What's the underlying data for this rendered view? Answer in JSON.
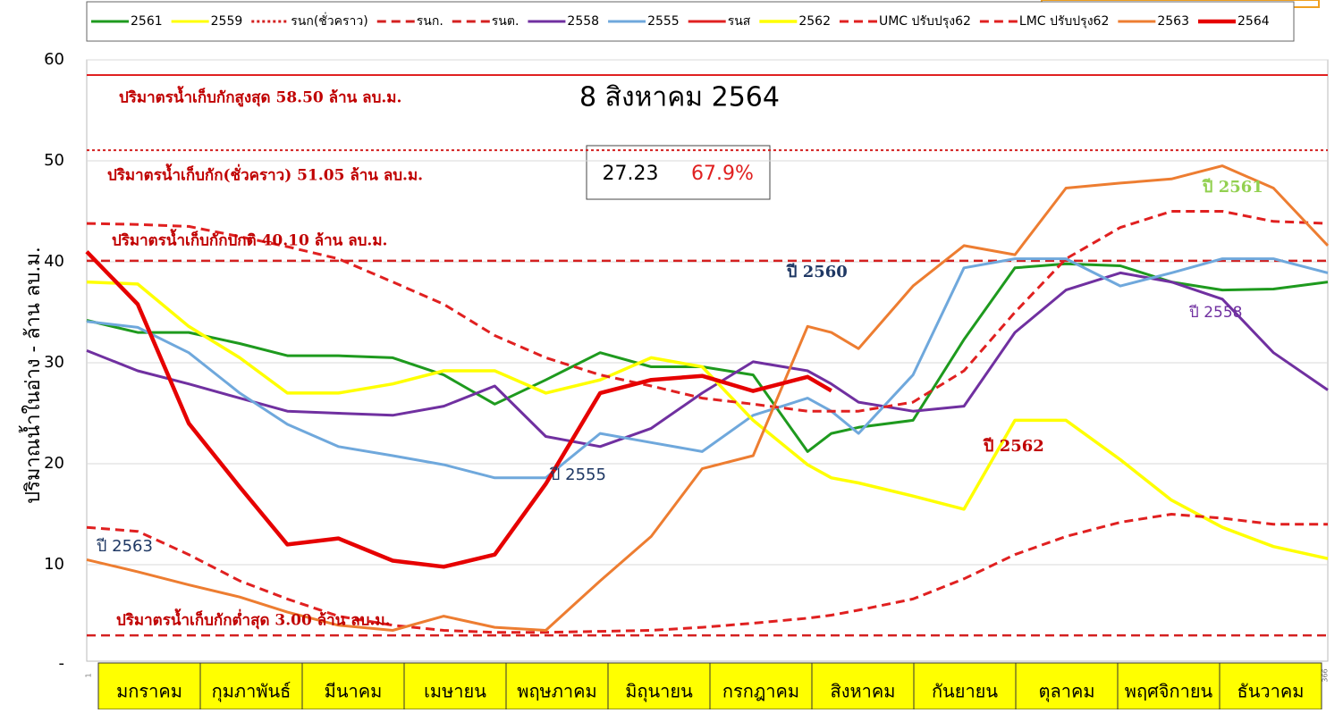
{
  "chart_data": {
    "type": "line",
    "title": "8 สิงหาคม 2564",
    "y_label": "ปริมาณน้ำในอ่าง - ล้าน ลบ.ม.",
    "current_volume": 27.23,
    "current_percent": {
      "value": 67.9,
      "label": "67.9%"
    },
    "categories": [
      "มกราคม",
      "กุมภาพันธ์",
      "มีนาคม",
      "เมษายน",
      "พฤษภาคม",
      "มิถุนายน",
      "กรกฎาคม",
      "สิงหาคม",
      "กันยายน",
      "ตุลาคม",
      "พฤศจิกายน",
      "ธันวาคม"
    ],
    "xlim": [
      1,
      366
    ],
    "xticks": [
      1,
      366
    ],
    "ylim": [
      0,
      60
    ],
    "yticks": [
      {
        "value": 0,
        "label": "-"
      },
      10,
      20,
      30,
      40,
      50,
      60
    ],
    "grid": true,
    "x": [
      1,
      16,
      31,
      46,
      60,
      75,
      91,
      106,
      121,
      136,
      152,
      167,
      182,
      197,
      213,
      220,
      228,
      244,
      259,
      274,
      289,
      305,
      320,
      335,
      350,
      366
    ],
    "annotations": [
      "ปริมาตรน้ำเก็บกักสูงสุด 58.50 ล้าน ลบ.ม.",
      "ปริมาตรน้ำเก็บกัก(ชั่วคราว) 51.05 ล้าน ลบ.ม.",
      "ปริมาตรน้ำเก็บกักปกติ 40.10 ล้าน ลบ.ม.",
      "ปริมาตรน้ำเก็บกักต่ำสุด 3.00 ล้าน ลบ.ม.",
      "ปี 2560",
      "ปี 2561",
      "ปี 2558",
      "ปี 2562",
      "ปี 2555",
      "ปี 2563"
    ],
    "series": [
      {
        "name": "2561",
        "color": "#1e9a1e",
        "dash": "solid",
        "width": 3,
        "values": [
          34.2,
          33,
          33,
          31.9,
          30.7,
          30.7,
          30.5,
          28.8,
          25.9,
          28.3,
          31,
          29.6,
          29.6,
          28.8,
          21.2,
          23,
          23.6,
          24.3,
          32.3,
          39.4,
          39.8,
          39.6,
          38,
          37.2,
          37.3,
          38
        ]
      },
      {
        "name": "2559",
        "color": "#ffff00",
        "dash": "solid",
        "width": 3
      },
      {
        "name": "รนก(ชั่วคราว)",
        "color": "#d42020",
        "dash": "dotted",
        "width": 2,
        "value": 51.05
      },
      {
        "name": "รนก.",
        "color": "#d42020",
        "dash": "dashed",
        "width": 2.5,
        "value": 40.1
      },
      {
        "name": "รนต.",
        "color": "#d42020",
        "dash": "dashed",
        "width": 2.5,
        "value": 3
      },
      {
        "name": "2558",
        "color": "#7030a0",
        "dash": "solid",
        "width": 3,
        "values": [
          31.2,
          29.2,
          27.9,
          26.5,
          25.2,
          25,
          24.8,
          25.7,
          27.7,
          22.7,
          21.7,
          23.5,
          27,
          30.1,
          29.2,
          27.9,
          26.1,
          25.2,
          25.7,
          33,
          37.2,
          38.9,
          38,
          36.3,
          31,
          27.3
        ]
      },
      {
        "name": "2555",
        "color": "#6fa8dc",
        "dash": "solid",
        "width": 3,
        "values": [
          34.1,
          33.5,
          31,
          27,
          23.9,
          21.7,
          20.8,
          19.9,
          18.6,
          18.6,
          23,
          22.1,
          21.2,
          24.8,
          26.5,
          25.2,
          23,
          28.8,
          39.4,
          40.3,
          40.3,
          37.6,
          38.9,
          40.3,
          40.3,
          38.9
        ]
      },
      {
        "name": "รนส",
        "color": "#e02020",
        "dash": "solid",
        "width": 2,
        "value": 58.5
      },
      {
        "name": "2562",
        "color": "#ffff00",
        "dash": "solid",
        "width": 3.5,
        "values": [
          38,
          37.8,
          33.6,
          30.5,
          27,
          27,
          27.9,
          29.2,
          29.2,
          27,
          28.3,
          30.5,
          29.6,
          24.3,
          19.9,
          18.6,
          18.1,
          16.8,
          15.5,
          24.3,
          24.3,
          20.4,
          16.4,
          13.7,
          11.8,
          10.6
        ]
      },
      {
        "name": "UMC ปรับปรุง62",
        "color": "#e02020",
        "dash": "dashed",
        "width": 3,
        "values": [
          43.8,
          43.7,
          43.5,
          42.5,
          41.5,
          40.3,
          38,
          35.8,
          32.7,
          30.5,
          28.8,
          27.7,
          26.5,
          25.9,
          25.2,
          25.2,
          25.2,
          26.1,
          29.2,
          35,
          40.3,
          43.4,
          45,
          45,
          44,
          43.8
        ]
      },
      {
        "name": "LMC ปรับปรุง62",
        "color": "#e02020",
        "dash": "dashed",
        "width": 3,
        "values": [
          13.7,
          13.3,
          11,
          8.4,
          6.6,
          4.9,
          4,
          3.5,
          3.3,
          3.3,
          3.4,
          3.5,
          3.8,
          4.2,
          4.7,
          5,
          5.5,
          6.6,
          8.6,
          11,
          12.8,
          14.2,
          15,
          14.6,
          14,
          14
        ]
      },
      {
        "name": "2563",
        "color": "#ed7d31",
        "dash": "solid",
        "width": 3,
        "values": [
          10.5,
          9.3,
          8,
          6.8,
          5.3,
          4,
          3.5,
          4.9,
          3.8,
          3.5,
          8.4,
          12.8,
          19.5,
          20.8,
          33.6,
          33,
          31.4,
          37.6,
          41.6,
          40.7,
          47.3,
          47.8,
          48.2,
          49.5,
          47.3,
          41.6
        ]
      },
      {
        "name": "2564",
        "color": "#e60000",
        "dash": "solid",
        "width": 4.5,
        "values": [
          41,
          35.8,
          24,
          17.7,
          12,
          12.6,
          10.4,
          9.8,
          11,
          18,
          27,
          28.3,
          28.7,
          27.2,
          28.6,
          27.23,
          null,
          null,
          null,
          null,
          null,
          null,
          null,
          null,
          null,
          null
        ]
      }
    ]
  }
}
